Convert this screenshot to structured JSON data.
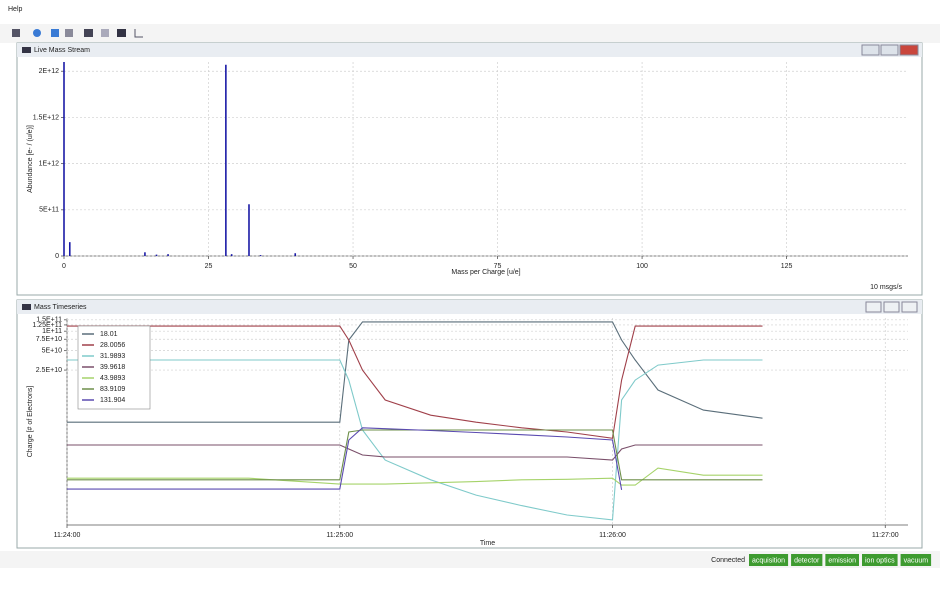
{
  "menu": [
    "Help"
  ],
  "chart_data": [
    {
      "type": "stem",
      "title": "Live Mass Stream",
      "x_label": "Mass per Charge [u/e]",
      "y_label": "Abundance [e- / (u/e)]",
      "x": [
        0,
        1,
        14,
        16,
        18,
        28,
        29,
        32,
        34,
        40
      ],
      "values": [
        2100000000000,
        150000000000,
        40000000000,
        15000000000,
        20000000000,
        2070000000000,
        20000000000,
        560000000000,
        10000000000,
        30000000000
      ],
      "color": "#1a1aa6",
      "xlim": [
        0,
        146
      ],
      "ylim": [
        0,
        2100000000000
      ],
      "xticks": [
        0,
        25,
        50,
        75,
        100,
        125
      ],
      "yticks": [
        0,
        {
          "value": 500000000000,
          "label": "5E+11"
        },
        {
          "value": 1000000000000,
          "label": "1E+12"
        },
        {
          "value": 1500000000000,
          "label": "1.5E+12"
        },
        {
          "value": 2000000000000,
          "label": "2E+12"
        }
      ],
      "grid": true,
      "annotation": "10 msgs/s"
    },
    {
      "type": "line",
      "title": "Mass Timeseries",
      "x_label": "Time",
      "y_label": "Charge [# of Electrons]",
      "y_scale": "log",
      "legend": "top-left",
      "grid": true,
      "x": [
        "11:24:00",
        "11:24:20",
        "11:24:40",
        "11:25:00",
        "11:25:02",
        "11:25:05",
        "11:25:10",
        "11:25:20",
        "11:25:30",
        "11:25:40",
        "11:25:50",
        "11:26:00",
        "11:26:02",
        "11:26:05",
        "11:26:10",
        "11:26:20",
        "11:26:33"
      ],
      "series": [
        {
          "name": "18.01",
          "color": "#5a6e7a",
          "values": [
            3900000000,
            3900000000,
            3900000000,
            3900000000,
            73000000000,
            139000000000,
            139000000000,
            139000000000,
            139000000000,
            139000000000,
            139000000000,
            139000000000,
            73000000000,
            35800000000,
            12300000000,
            6000000000,
            4500000000
          ]
        },
        {
          "name": "28.0056",
          "color": "#a0404a",
          "values": [
            120000000000,
            120000000000,
            120000000000,
            120000000000,
            73000000000,
            25000000000,
            8600000000,
            5000000000,
            3900000000,
            3200000000,
            2750000000,
            2200000000,
            17500000000,
            120000000000,
            120000000000,
            120000000000,
            120000000000
          ]
        },
        {
          "name": "31.9893",
          "color": "#7fcaca",
          "values": [
            35800000000,
            35800000000,
            35800000000,
            35800000000,
            17500000000,
            2950000000,
            1010000000,
            500000000,
            290000000,
            200000000,
            143000000,
            120000000,
            8600000000,
            17500000000,
            29900000000,
            35800000000,
            35800000000
          ]
        },
        {
          "name": "39.9618",
          "color": "#7a4f6a",
          "values": [
            1730000000,
            1730000000,
            1730000000,
            1730000000,
            1500000000,
            1210000000,
            1130000000,
            1130000000,
            1130000000,
            1130000000,
            1130000000,
            1010000000,
            1500000000,
            1730000000,
            1730000000,
            1730000000,
            1730000000
          ]
        },
        {
          "name": "43.9893",
          "color": "#a6d36a",
          "values": [
            530000000,
            530000000,
            530000000,
            430000000,
            430000000,
            430000000,
            430000000,
            450000000,
            470000000,
            500000000,
            510000000,
            530000000,
            415000000,
            415000000,
            760000000,
            590000000,
            590000000
          ]
        },
        {
          "name": "83.9109",
          "color": "#6e8f4a",
          "values": [
            500000000,
            500000000,
            500000000,
            500000000,
            2750000000,
            2950000000,
            2950000000,
            2950000000,
            2950000000,
            2950000000,
            2950000000,
            2950000000,
            500000000,
            500000000,
            500000000,
            500000000,
            500000000
          ]
        },
        {
          "name": "131.904",
          "color": "#5a4ab0",
          "values": [
            360000000,
            360000000,
            360000000,
            360000000,
            2070000000,
            3200000000,
            3100000000,
            2900000000,
            2700000000,
            2500000000,
            2300000000,
            2070000000,
            350000000,
            null,
            null,
            null,
            null
          ]
        }
      ],
      "xlim": [
        "11:24:00",
        "11:27:05"
      ],
      "ylim": [
        100000000,
        160000000000
      ],
      "xticks": [
        "11:24:00",
        "11:25:00",
        "11:26:00",
        "11:27:00"
      ],
      "yticks": [
        {
          "value": 25000000000,
          "label": "2.5E+10"
        },
        {
          "value": 50000000000,
          "label": "5E+10"
        },
        {
          "value": 75000000000,
          "label": "7.5E+10"
        },
        {
          "value": 100000000000,
          "label": "1E+11"
        },
        {
          "value": 125000000000,
          "label": "1.25E+11"
        },
        {
          "value": 150000000000,
          "label": "1.5E+11"
        }
      ]
    }
  ],
  "status": {
    "text": "Connected",
    "badges": [
      "acquisition",
      "detector",
      "emission",
      "ion optics",
      "vacuum"
    ]
  }
}
